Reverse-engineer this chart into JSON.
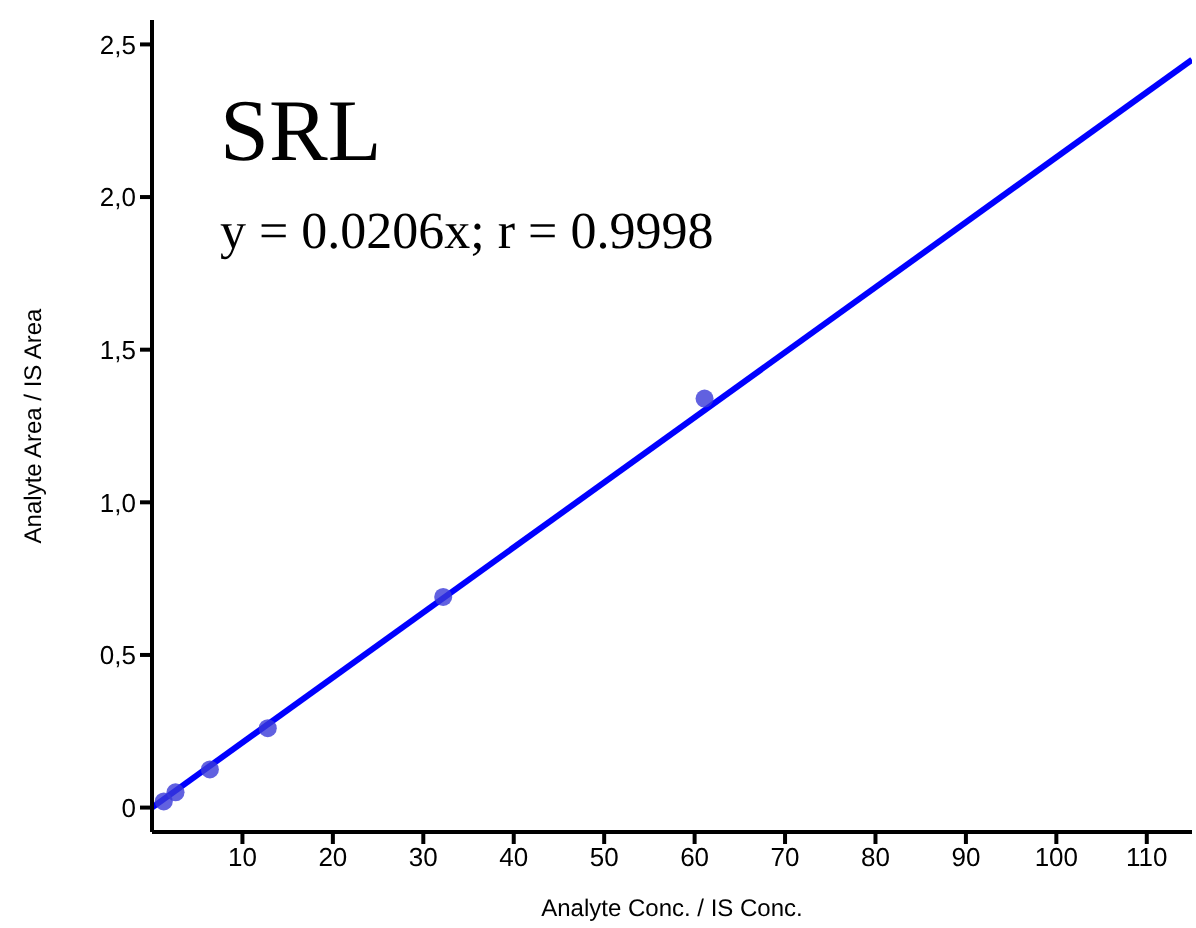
{
  "chart_data": {
    "type": "scatter",
    "xlabel": "Analyte Conc. / IS Conc.",
    "ylabel": "Analyte Area / IS Area",
    "annotations": [
      "SRL",
      "y = 0.0206x; r = 0.9998"
    ],
    "xlim": [
      0,
      115
    ],
    "xticks": [
      10,
      20,
      30,
      40,
      50,
      60,
      70,
      80,
      90,
      100,
      110
    ],
    "ylim": [
      -0.08,
      2.58
    ],
    "yticks": [
      0,
      {
        "value": 0.5,
        "label": "0,5"
      },
      {
        "value": 1,
        "label": "1,0"
      },
      {
        "value": 1.5,
        "label": "1,5"
      },
      {
        "value": 2,
        "label": "2,0"
      },
      {
        "value": 2.5,
        "label": "2,5"
      }
    ],
    "grid": false,
    "legend": false,
    "marker": "circle",
    "series": [
      {
        "color": "#3a3ad8",
        "x": [
          1.3,
          2.6,
          6.4,
          12.8,
          32.2,
          61.1
        ],
        "values": [
          0.02,
          0.05,
          0.125,
          0.26,
          0.69,
          1.34
        ]
      },
      {
        "type": "line",
        "color": "#0000ff",
        "x": [
          0,
          115
        ],
        "values": [
          0,
          2.45
        ],
        "marker": "none",
        "line_style": "solid"
      }
    ]
  }
}
